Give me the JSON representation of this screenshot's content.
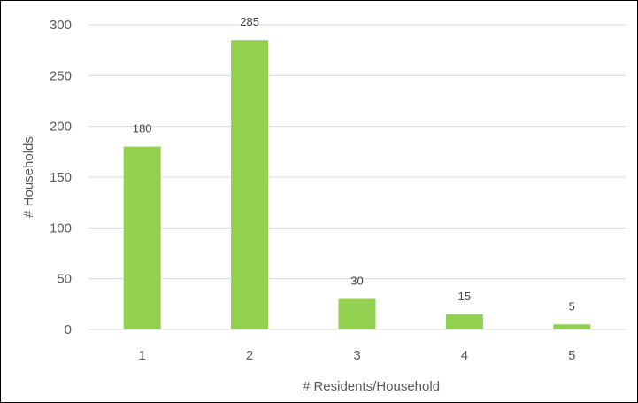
{
  "chart_data": {
    "type": "bar",
    "title": "",
    "xlabel": "# Residents/Household",
    "ylabel": "# Households",
    "categories": [
      "1",
      "2",
      "3",
      "4",
      "5"
    ],
    "values": [
      180,
      285,
      30,
      15,
      5
    ],
    "data_labels": [
      "180",
      "285",
      "30",
      "15",
      "5"
    ],
    "ylim": [
      0,
      300
    ],
    "y_ticks": [
      0,
      50,
      100,
      150,
      200,
      250,
      300
    ],
    "y_tick_labels": [
      "0",
      "50",
      "100",
      "150",
      "200",
      "250",
      "300"
    ],
    "grid": "horizontal",
    "legend": "none",
    "bar_color": "#92D050",
    "grid_color": "#D9D9D9"
  }
}
